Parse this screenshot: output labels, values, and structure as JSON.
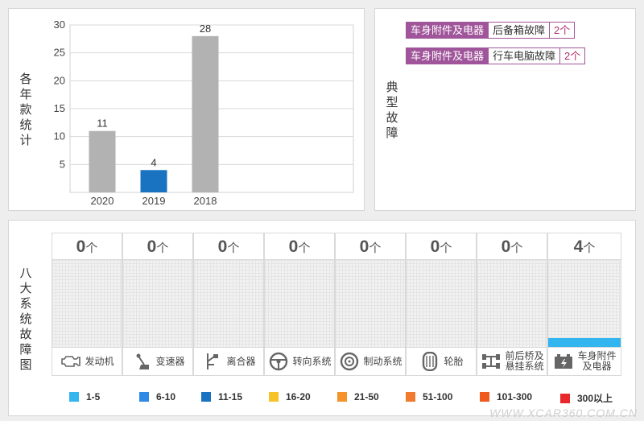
{
  "yearly": {
    "vlabel": "各年款统计"
  },
  "faults": {
    "vlabel": "典型故障",
    "items": [
      {
        "category": "车身附件及电器",
        "name": "后备箱故障",
        "count": "2个"
      },
      {
        "category": "车身附件及电器",
        "name": "行车电脑故障",
        "count": "2个"
      }
    ]
  },
  "systems": {
    "vlabel": "八大系统故障图",
    "unit": "个",
    "columns": [
      {
        "label": "发动机",
        "count": 0,
        "icon": "engine-icon"
      },
      {
        "label": "变速器",
        "count": 0,
        "icon": "gear-shift-icon"
      },
      {
        "label": "离合器",
        "count": 0,
        "icon": "clutch-pedal-icon"
      },
      {
        "label": "转向系统",
        "count": 0,
        "icon": "steering-wheel-icon"
      },
      {
        "label": "制动系统",
        "count": 0,
        "icon": "brake-disc-icon"
      },
      {
        "label": "轮胎",
        "count": 0,
        "icon": "tire-icon"
      },
      {
        "label": "前后桥及悬挂系统",
        "label_lines": [
          "前后桥及",
          "悬挂系统"
        ],
        "count": 0,
        "icon": "axle-icon"
      },
      {
        "label": "车身附件及电器",
        "label_lines": [
          "车身附件",
          "及电器"
        ],
        "count": 4,
        "icon": "battery-icon",
        "fill_fraction": 0.12,
        "fill_color": "#33b5f0"
      }
    ],
    "legend": [
      {
        "label": "1-5",
        "color": "#33b5f0"
      },
      {
        "label": "6-10",
        "color": "#2f8ae6"
      },
      {
        "label": "11-15",
        "color": "#1a73c0"
      },
      {
        "label": "16-20",
        "color": "#f5c22a"
      },
      {
        "label": "21-50",
        "color": "#f5922a"
      },
      {
        "label": "51-100",
        "color": "#f07a2e"
      },
      {
        "label": "101-300",
        "color": "#ef5a1e"
      },
      {
        "label": "300以上",
        "color": "#e8282a"
      }
    ]
  },
  "chart_data": {
    "type": "bar",
    "categories": [
      "2020",
      "2019",
      "2018"
    ],
    "values": [
      11,
      4,
      28
    ],
    "bar_colors": [
      "#b2b2b2",
      "#1a73c0",
      "#b2b2b2"
    ],
    "yticks": [
      5,
      10,
      15,
      20,
      25,
      30
    ],
    "ylim": [
      0,
      30
    ],
    "grid": true
  },
  "watermark": "WWW.XCAR360.COM.CN"
}
